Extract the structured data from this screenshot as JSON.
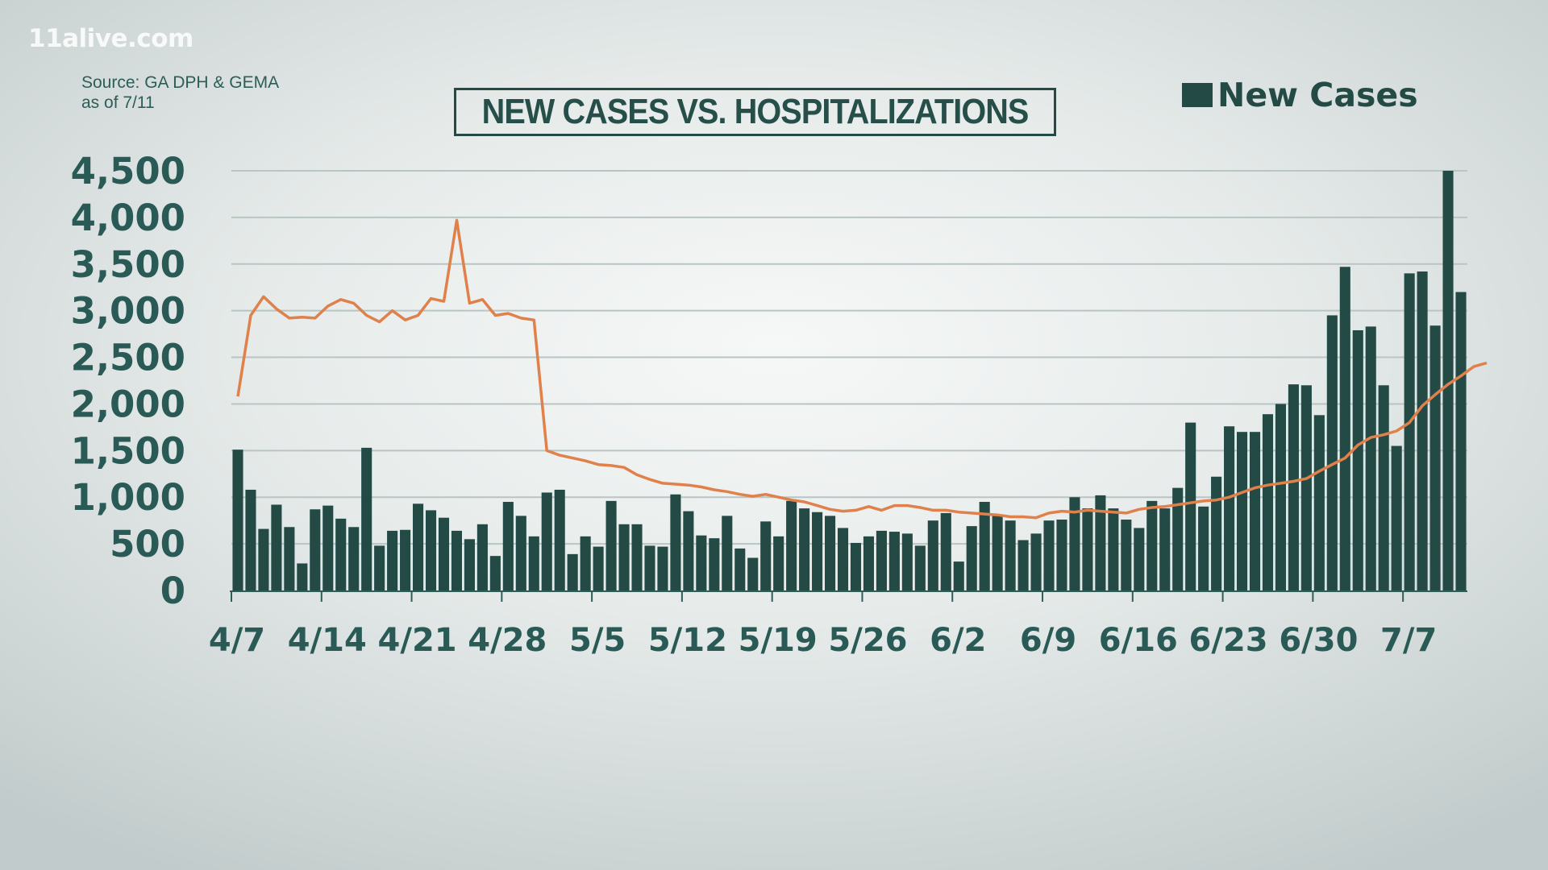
{
  "watermark": "11alive.com",
  "source": {
    "line1": "Source: GA DPH & GEMA",
    "line2": "as of 7/11"
  },
  "chart_data": {
    "type": "bar",
    "title": "NEW CASES VS. HOSPITALIZATIONS",
    "xlabel": "",
    "ylabel": "",
    "ylim": [
      0,
      4500
    ],
    "y_ticks": [
      "0",
      "500",
      "1,000",
      "1,500",
      "2,000",
      "2,500",
      "3,000",
      "3,500",
      "4,000",
      "4,500"
    ],
    "y_tick_values": [
      0,
      500,
      1000,
      1500,
      2000,
      2500,
      3000,
      3500,
      4000,
      4500
    ],
    "x_tick_labels": [
      "4/7",
      "4/14",
      "4/21",
      "4/28",
      "5/5",
      "5/12",
      "5/19",
      "5/26",
      "6/2",
      "6/9",
      "6/16",
      "6/23",
      "6/30",
      "7/7"
    ],
    "x_tick_indices": [
      0,
      7,
      14,
      21,
      28,
      35,
      42,
      49,
      56,
      63,
      70,
      77,
      84,
      91
    ],
    "grid": true,
    "legend": "top-right",
    "colors": {
      "bars": "#244a46",
      "line": "#e0804a",
      "grid": "#b9c4c4",
      "axis": "#2f5d58"
    },
    "series": [
      {
        "name": "New Cases",
        "type": "bar",
        "values": [
          1510,
          1080,
          660,
          920,
          680,
          290,
          870,
          910,
          770,
          680,
          1530,
          480,
          640,
          650,
          930,
          860,
          780,
          640,
          550,
          710,
          370,
          950,
          800,
          580,
          1050,
          1080,
          390,
          580,
          470,
          960,
          710,
          710,
          480,
          470,
          1030,
          850,
          590,
          560,
          800,
          450,
          350,
          740,
          580,
          960,
          880,
          840,
          800,
          670,
          510,
          580,
          640,
          630,
          610,
          480,
          750,
          830,
          310,
          690,
          950,
          800,
          750,
          540,
          610,
          750,
          760,
          1000,
          880,
          1020,
          880,
          760,
          670,
          960,
          880,
          1100,
          1800,
          900,
          1220,
          1760,
          1700,
          1700,
          1890,
          2000,
          2210,
          2200,
          1880,
          2950,
          3470,
          2790,
          2830,
          2200,
          1550,
          3400,
          3420,
          2840,
          4500,
          3200
        ]
      },
      {
        "type": "line",
        "values": [
          2080,
          2950,
          3150,
          3020,
          2920,
          2930,
          2920,
          3050,
          3120,
          3080,
          2950,
          2880,
          3000,
          2900,
          2950,
          3130,
          3100,
          3970,
          3080,
          3120,
          2950,
          2970,
          2920,
          2900,
          1500,
          1450,
          1420,
          1390,
          1350,
          1340,
          1320,
          1240,
          1190,
          1150,
          1140,
          1130,
          1110,
          1080,
          1060,
          1030,
          1010,
          1030,
          1000,
          970,
          950,
          910,
          870,
          850,
          860,
          900,
          860,
          910,
          910,
          890,
          860,
          860,
          840,
          830,
          820,
          810,
          790,
          790,
          780,
          830,
          850,
          840,
          860,
          850,
          840,
          830,
          870,
          890,
          900,
          920,
          940,
          960,
          970,
          1000,
          1050,
          1100,
          1130,
          1150,
          1170,
          1200,
          1280,
          1350,
          1420,
          1560,
          1640,
          1670,
          1710,
          1800,
          1980,
          2100,
          2210,
          2300,
          2400,
          2440
        ]
      }
    ]
  }
}
